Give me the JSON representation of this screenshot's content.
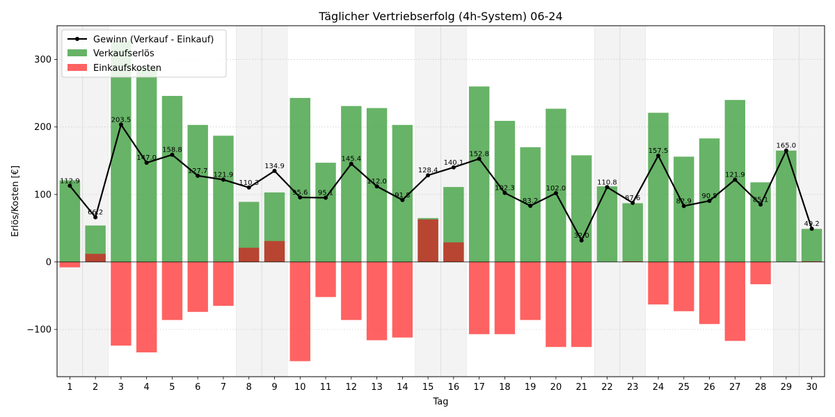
{
  "chart_data": {
    "type": "bar",
    "title": "Täglicher Vertriebserfolg (4h-System) 06-24",
    "xlabel": "Tag",
    "ylabel": "Erlös/Kosten [€]",
    "xlim": [
      0.5,
      30.5
    ],
    "ylim": [
      -170,
      350
    ],
    "yticks": [
      -100,
      0,
      100,
      200,
      300
    ],
    "grid": "horizontal-dotted",
    "legend_position": "top-left",
    "categories": [
      "1",
      "2",
      "3",
      "4",
      "5",
      "6",
      "7",
      "8",
      "9",
      "10",
      "11",
      "12",
      "13",
      "14",
      "15",
      "16",
      "17",
      "18",
      "19",
      "20",
      "21",
      "22",
      "23",
      "24",
      "25",
      "26",
      "27",
      "28",
      "29",
      "30"
    ],
    "weekend_days": [
      1,
      2,
      8,
      9,
      15,
      16,
      22,
      23,
      29,
      30
    ],
    "series": [
      {
        "name": "Gewinn (Verkauf - Einkauf)",
        "kind": "line",
        "color": "#000000",
        "values": [
          112.9,
          66.2,
          203.5,
          147.0,
          158.8,
          127.7,
          121.9,
          110.3,
          134.9,
          95.6,
          95.1,
          145.4,
          112.0,
          91.8,
          128.4,
          140.1,
          152.8,
          102.3,
          83.2,
          102.0,
          32.0,
          110.8,
          87.6,
          157.5,
          82.9,
          90.5,
          121.9,
          85.1,
          165.0,
          49.2
        ],
        "labels": [
          "112.9",
          "66.2",
          "203.5",
          "147.0",
          "158.8",
          "127.7",
          "121.9",
          "110.3",
          "134.9",
          "95.6",
          "95.1",
          "145.4",
          "112.0",
          "91.8",
          "128.4",
          "140.1",
          "152.8",
          "102.3",
          "83.2",
          "102.0",
          "32.0",
          "110.8",
          "87.6",
          "157.5",
          "82.9",
          "90.5",
          "121.9",
          "85.1",
          "165.0",
          "49.2"
        ]
      },
      {
        "name": "Verkaufserlös",
        "kind": "bar",
        "color": "#4ca64c",
        "values": [
          121,
          54,
          328,
          288,
          246,
          203,
          187,
          89,
          103,
          243,
          147,
          231,
          228,
          203,
          65,
          111,
          260,
          209,
          170,
          227,
          158,
          112,
          87,
          221,
          156,
          183,
          240,
          118,
          165,
          49
        ]
      },
      {
        "name": "Einkaufskosten",
        "kind": "bar",
        "color": "#ff4040",
        "values": [
          -8,
          12,
          -124,
          -134,
          -86,
          -74,
          -65,
          21,
          31,
          -147,
          -52,
          -86,
          -116,
          -112,
          63,
          29,
          -107,
          -107,
          -86,
          -126,
          -126,
          0,
          1,
          -63,
          -73,
          -92,
          -117,
          -33,
          0,
          1
        ]
      }
    ]
  }
}
